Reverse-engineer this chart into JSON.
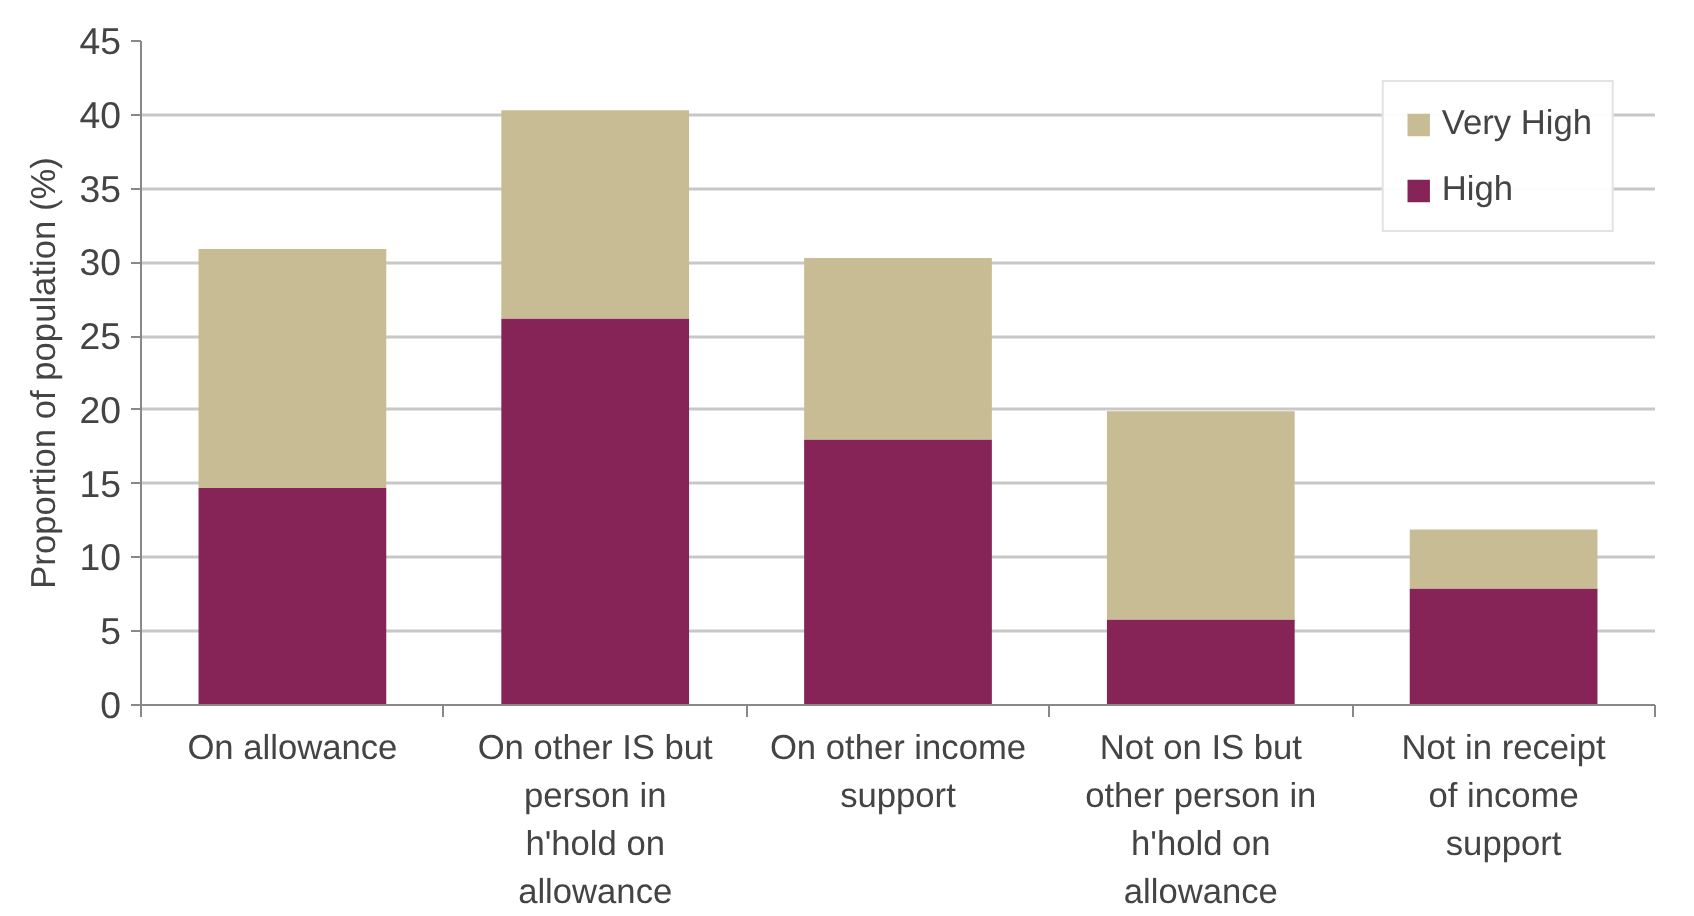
{
  "chart_data": {
    "type": "bar",
    "stacked": true,
    "ylabel": "Proportion of population (%)",
    "categories": [
      "On allowance",
      "On other IS but person in h'hold on allowance",
      "On other income support",
      "Not on IS but other person in h'hold on allowance",
      "Not in receipt of income support"
    ],
    "series": [
      {
        "name": "High",
        "color": "#862457",
        "values": [
          14.7,
          26.2,
          18.0,
          5.8,
          7.9
        ]
      },
      {
        "name": "Very High",
        "color": "#c8bc94",
        "values": [
          16.2,
          14.1,
          12.3,
          14.1,
          4.0
        ]
      }
    ],
    "ylim": [
      0,
      45
    ],
    "yticks": [
      0,
      5,
      10,
      15,
      20,
      25,
      30,
      35,
      40,
      45
    ],
    "grid": "y",
    "legend": "top right"
  }
}
